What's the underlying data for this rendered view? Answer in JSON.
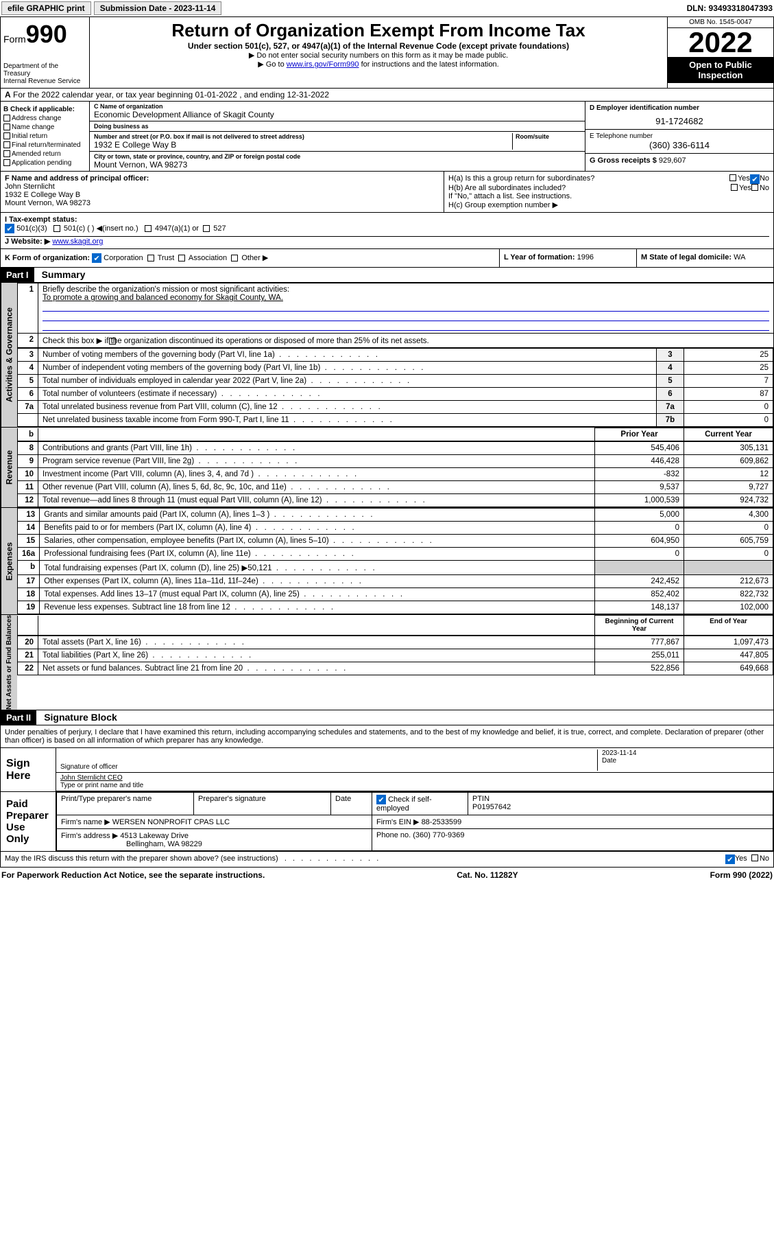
{
  "topbar": {
    "efile": "efile GRAPHIC print",
    "submission_label": "Submission Date - 2023-11-14",
    "dln": "DLN: 93493318047393"
  },
  "header": {
    "form_word": "Form",
    "form_num": "990",
    "dept": "Department of the Treasury",
    "irs": "Internal Revenue Service",
    "title": "Return of Organization Exempt From Income Tax",
    "subtitle": "Under section 501(c), 527, or 4947(a)(1) of the Internal Revenue Code (except private foundations)",
    "note1": "▶ Do not enter social security numbers on this form as it may be made public.",
    "note2_pre": "▶ Go to ",
    "note2_link": "www.irs.gov/Form990",
    "note2_post": " for instructions and the latest information.",
    "omb": "OMB No. 1545-0047",
    "year": "2022",
    "open": "Open to Public Inspection"
  },
  "row_a": "For the 2022 calendar year, or tax year beginning 01-01-2022   , and ending 12-31-2022",
  "box_b": {
    "label": "B Check if applicable:",
    "items": [
      "Address change",
      "Name change",
      "Initial return",
      "Final return/terminated",
      "Amended return",
      "Application pending"
    ]
  },
  "box_c": {
    "name_label": "C Name of organization",
    "name": "Economic Development Alliance of Skagit County",
    "dba_label": "Doing business as",
    "addr_label": "Number and street (or P.O. box if mail is not delivered to street address)",
    "room_label": "Room/suite",
    "addr": "1932 E College Way B",
    "city_label": "City or town, state or province, country, and ZIP or foreign postal code",
    "city": "Mount Vernon, WA  98273"
  },
  "box_d": {
    "label": "D Employer identification number",
    "val": "91-1724682"
  },
  "box_e": {
    "label": "E Telephone number",
    "val": "(360) 336-6114"
  },
  "box_g": {
    "label": "G Gross receipts $",
    "val": "929,607"
  },
  "box_f": {
    "label": "F  Name and address of principal officer:",
    "name": "John Sternlicht",
    "addr1": "1932 E College Way B",
    "addr2": "Mount Vernon, WA  98273"
  },
  "box_h": {
    "ha": "H(a)  Is this a group return for subordinates?",
    "hb": "H(b)  Are all subordinates included?",
    "hb_note": "If \"No,\" attach a list. See instructions.",
    "hc": "H(c)  Group exemption number ▶",
    "yes": "Yes",
    "no": "No"
  },
  "box_i": {
    "label": "I    Tax-exempt status:",
    "opts": [
      "501(c)(3)",
      "501(c) (   ) ◀(insert no.)",
      "4947(a)(1) or",
      "527"
    ]
  },
  "box_j": {
    "label": "J    Website: ▶",
    "val": "www.skagit.org"
  },
  "box_k": {
    "label": "K Form of organization:",
    "opts": [
      "Corporation",
      "Trust",
      "Association",
      "Other ▶"
    ]
  },
  "box_l": {
    "label": "L Year of formation:",
    "val": "1996"
  },
  "box_m": {
    "label": "M State of legal domicile:",
    "val": "WA"
  },
  "part1": {
    "bar": "Part I",
    "title": "Summary",
    "q1": "Briefly describe the organization's mission or most significant activities:",
    "q1_ans": "To promote a growing and balanced economy for Skagit County, WA.",
    "q2": "Check this box ▶        if the organization discontinued its operations or disposed of more than 25% of its net assets.",
    "sections": {
      "gov": "Activities & Governance",
      "rev": "Revenue",
      "exp": "Expenses",
      "net": "Net Assets or Fund Balances"
    },
    "hdr_prior": "Prior Year",
    "hdr_curr": "Current Year",
    "hdr_begin": "Beginning of Current Year",
    "hdr_end": "End of Year",
    "rows_gov": [
      {
        "n": "3",
        "t": "Number of voting members of the governing body (Part VI, line 1a)",
        "k": "3",
        "v": "25"
      },
      {
        "n": "4",
        "t": "Number of independent voting members of the governing body (Part VI, line 1b)",
        "k": "4",
        "v": "25"
      },
      {
        "n": "5",
        "t": "Total number of individuals employed in calendar year 2022 (Part V, line 2a)",
        "k": "5",
        "v": "7"
      },
      {
        "n": "6",
        "t": "Total number of volunteers (estimate if necessary)",
        "k": "6",
        "v": "87"
      },
      {
        "n": "7a",
        "t": "Total unrelated business revenue from Part VIII, column (C), line 12",
        "k": "7a",
        "v": "0"
      },
      {
        "n": "",
        "t": "Net unrelated business taxable income from Form 990-T, Part I, line 11",
        "k": "7b",
        "v": "0"
      }
    ],
    "rows_rev": [
      {
        "n": "8",
        "t": "Contributions and grants (Part VIII, line 1h)",
        "p": "545,406",
        "c": "305,131"
      },
      {
        "n": "9",
        "t": "Program service revenue (Part VIII, line 2g)",
        "p": "446,428",
        "c": "609,862"
      },
      {
        "n": "10",
        "t": "Investment income (Part VIII, column (A), lines 3, 4, and 7d )",
        "p": "-832",
        "c": "12"
      },
      {
        "n": "11",
        "t": "Other revenue (Part VIII, column (A), lines 5, 6d, 8c, 9c, 10c, and 11e)",
        "p": "9,537",
        "c": "9,727"
      },
      {
        "n": "12",
        "t": "Total revenue—add lines 8 through 11 (must equal Part VIII, column (A), line 12)",
        "p": "1,000,539",
        "c": "924,732"
      }
    ],
    "rows_exp": [
      {
        "n": "13",
        "t": "Grants and similar amounts paid (Part IX, column (A), lines 1–3 )",
        "p": "5,000",
        "c": "4,300"
      },
      {
        "n": "14",
        "t": "Benefits paid to or for members (Part IX, column (A), line 4)",
        "p": "0",
        "c": "0"
      },
      {
        "n": "15",
        "t": "Salaries, other compensation, employee benefits (Part IX, column (A), lines 5–10)",
        "p": "604,950",
        "c": "605,759"
      },
      {
        "n": "16a",
        "t": "Professional fundraising fees (Part IX, column (A), line 11e)",
        "p": "0",
        "c": "0"
      },
      {
        "n": "b",
        "t": "Total fundraising expenses (Part IX, column (D), line 25) ▶50,121",
        "p": "",
        "c": ""
      },
      {
        "n": "17",
        "t": "Other expenses (Part IX, column (A), lines 11a–11d, 11f–24e)",
        "p": "242,452",
        "c": "212,673"
      },
      {
        "n": "18",
        "t": "Total expenses. Add lines 13–17 (must equal Part IX, column (A), line 25)",
        "p": "852,402",
        "c": "822,732"
      },
      {
        "n": "19",
        "t": "Revenue less expenses. Subtract line 18 from line 12",
        "p": "148,137",
        "c": "102,000"
      }
    ],
    "rows_net": [
      {
        "n": "20",
        "t": "Total assets (Part X, line 16)",
        "p": "777,867",
        "c": "1,097,473"
      },
      {
        "n": "21",
        "t": "Total liabilities (Part X, line 26)",
        "p": "255,011",
        "c": "447,805"
      },
      {
        "n": "22",
        "t": "Net assets or fund balances. Subtract line 21 from line 20",
        "p": "522,856",
        "c": "649,668"
      }
    ]
  },
  "part2": {
    "bar": "Part II",
    "title": "Signature Block",
    "decl": "Under penalties of perjury, I declare that I have examined this return, including accompanying schedules and statements, and to the best of my knowledge and belief, it is true, correct, and complete. Declaration of preparer (other than officer) is based on all information of which preparer has any knowledge.",
    "sign_here": "Sign Here",
    "sig_officer": "Signature of officer",
    "sig_date": "Date",
    "sig_date_val": "2023-11-14",
    "sig_name": "John Sternlicht CEO",
    "sig_name_label": "Type or print name and title",
    "paid": "Paid Preparer Use Only",
    "prep_name_label": "Print/Type preparer's name",
    "prep_sig_label": "Preparer's signature",
    "prep_date_label": "Date",
    "prep_self": "Check          if self-employed",
    "ptin_label": "PTIN",
    "ptin": "P01957642",
    "firm_name_label": "Firm's name     ▶",
    "firm_name": "WERSEN NONPROFIT CPAS LLC",
    "firm_ein_label": "Firm's EIN ▶",
    "firm_ein": "88-2533599",
    "firm_addr_label": "Firm's address ▶",
    "firm_addr1": "4513 Lakeway Drive",
    "firm_addr2": "Bellingham, WA  98229",
    "firm_phone_label": "Phone no.",
    "firm_phone": "(360) 770-9369",
    "discuss": "May the IRS discuss this return with the preparer shown above? (see instructions)"
  },
  "footer": {
    "left": "For Paperwork Reduction Act Notice, see the separate instructions.",
    "mid": "Cat. No. 11282Y",
    "right": "Form 990 (2022)"
  }
}
